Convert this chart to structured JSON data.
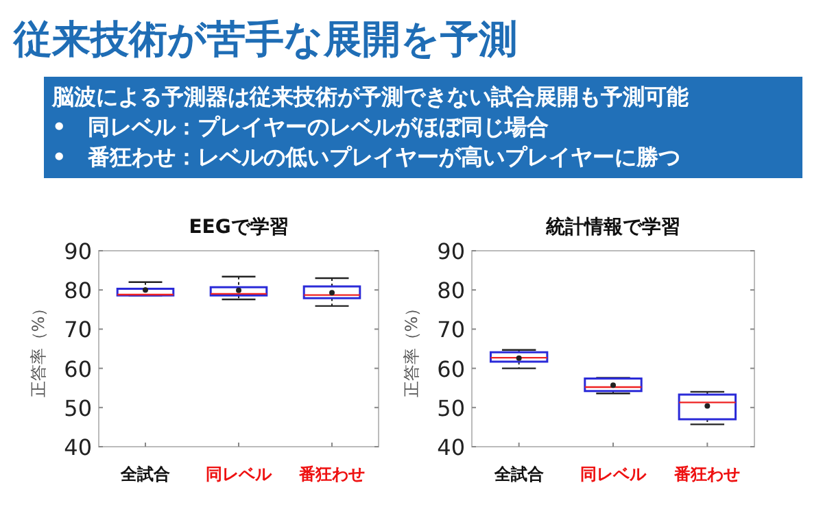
{
  "chart_data": [
    {
      "type": "other",
      "title": "従来技術が苦手な展開を予測",
      "annotations": [
        "脳波による予測器は従来技術が予測できない試合展開も予測可能",
        "•　同レベル：プレイヤーのレベルがほぼ同じ場合",
        "•　番狂わせ：レベルの低いプレイヤーが高いプレイヤーに勝つ"
      ]
    },
    {
      "type": "box",
      "title": "EEGで学習",
      "ylabel": "正答率（%）",
      "categories": [
        "全試合",
        "同レベル",
        "番狂わせ"
      ],
      "color": "#2a2ad8",
      "ylim": [
        40,
        90
      ],
      "yticks": [
        40,
        50,
        60,
        70,
        80,
        90
      ],
      "grid": false,
      "boxes": [
        {
          "low": 78.6,
          "q1": 78.6,
          "median": 78.8,
          "q3": 80.3,
          "high": 82.0,
          "mean": 80.0
        },
        {
          "low": 77.6,
          "q1": 78.6,
          "median": 79.0,
          "q3": 80.7,
          "high": 83.4,
          "mean": 79.9
        },
        {
          "low": 75.9,
          "q1": 77.9,
          "median": 78.7,
          "q3": 80.9,
          "high": 83.0,
          "mean": 79.3
        }
      ]
    },
    {
      "type": "box",
      "title": "統計情報で学習",
      "ylabel": "正答率（%）",
      "categories": [
        "全試合",
        "同レベル",
        "番狂わせ"
      ],
      "color": "#2a2ad8",
      "ylim": [
        40,
        90
      ],
      "yticks": [
        40,
        50,
        60,
        70,
        80,
        90
      ],
      "grid": false,
      "boxes": [
        {
          "low": 60.0,
          "q1": 61.7,
          "median": 62.7,
          "q3": 64.1,
          "high": 64.7,
          "mean": 62.6
        },
        {
          "low": 53.6,
          "q1": 54.2,
          "median": 55.2,
          "q3": 57.4,
          "high": 57.6,
          "mean": 55.7
        },
        {
          "low": 45.7,
          "q1": 47.0,
          "median": 51.3,
          "q3": 53.3,
          "high": 54.0,
          "mean": 50.4
        }
      ]
    }
  ]
}
